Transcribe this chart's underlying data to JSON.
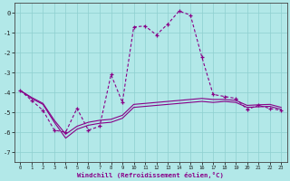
{
  "xlabel": "Windchill (Refroidissement éolien,°C)",
  "background_color": "#b2e8e8",
  "grid_color": "#8ecfcf",
  "line_color": "#880088",
  "xlim": [
    -0.5,
    23.5
  ],
  "ylim": [
    -7.5,
    0.5
  ],
  "xticks": [
    0,
    1,
    2,
    3,
    4,
    5,
    6,
    7,
    8,
    9,
    10,
    11,
    12,
    13,
    14,
    15,
    16,
    17,
    18,
    19,
    20,
    21,
    22,
    23
  ],
  "yticks": [
    0,
    -1,
    -2,
    -3,
    -4,
    -5,
    -6,
    -7
  ],
  "line1_x": [
    0,
    1,
    2,
    3,
    4,
    5,
    6,
    7,
    8,
    9,
    10,
    11,
    12,
    13,
    14,
    15,
    16,
    17,
    18,
    19,
    20,
    21,
    22,
    23
  ],
  "line1_y": [
    -3.9,
    -4.4,
    -4.9,
    -5.9,
    -6.0,
    -4.8,
    -5.9,
    -5.7,
    -3.1,
    -4.5,
    -0.7,
    -0.65,
    -1.1,
    -0.55,
    0.1,
    -0.1,
    -2.2,
    -4.1,
    -4.2,
    -4.3,
    -4.85,
    -4.65,
    -4.8,
    -4.9
  ],
  "line2_x": [
    0,
    1,
    2,
    3,
    4,
    5,
    6,
    7,
    8,
    9,
    10,
    11,
    12,
    13,
    14,
    15,
    16,
    17,
    18,
    19,
    20,
    21,
    22,
    23
  ],
  "line2_y": [
    -3.9,
    -4.3,
    -4.6,
    -5.5,
    -6.3,
    -5.85,
    -5.65,
    -5.55,
    -5.5,
    -5.3,
    -4.75,
    -4.7,
    -4.65,
    -4.6,
    -4.55,
    -4.5,
    -4.45,
    -4.5,
    -4.45,
    -4.5,
    -4.75,
    -4.72,
    -4.7,
    -4.85
  ],
  "line3_x": [
    0,
    1,
    2,
    3,
    4,
    5,
    6,
    7,
    8,
    9,
    10,
    11,
    12,
    13,
    14,
    15,
    16,
    17,
    18,
    19,
    20,
    21,
    22,
    23
  ],
  "line3_y": [
    -3.9,
    -4.25,
    -4.55,
    -5.4,
    -6.1,
    -5.7,
    -5.5,
    -5.4,
    -5.35,
    -5.15,
    -4.6,
    -4.55,
    -4.5,
    -4.45,
    -4.4,
    -4.35,
    -4.3,
    -4.35,
    -4.35,
    -4.4,
    -4.65,
    -4.62,
    -4.6,
    -4.75
  ]
}
